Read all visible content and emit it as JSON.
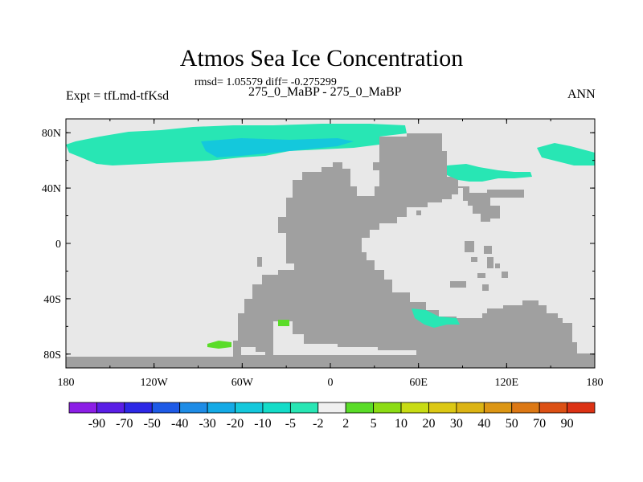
{
  "title": "Atmos Sea Ice Concentration",
  "stats": "rmsd= 1.05579 diff= -0.275299",
  "left_label": "Expt = tfLmd-tfKsd",
  "center_label": "275_0_MaBP - 275_0_MaBP",
  "right_label": "ANN",
  "lat_labels": [
    "80N",
    "40N",
    "0",
    "40S",
    "80S"
  ],
  "lon_labels": [
    "180",
    "120W",
    "60W",
    "0",
    "60E",
    "120E",
    "180"
  ],
  "colorbar": {
    "labels": [
      "-90",
      "-70",
      "-50",
      "-40",
      "-30",
      "-20",
      "-10",
      "-5",
      "-2",
      "2",
      "5",
      "10",
      "20",
      "30",
      "40",
      "50",
      "70",
      "90"
    ],
    "colors": [
      "#8c1ee6",
      "#5a1ee6",
      "#2d28e6",
      "#1e5ae6",
      "#1e8ce6",
      "#14aae6",
      "#14c8dc",
      "#14dcc8",
      "#28e6b4",
      "#f0f0f0",
      "#5adc28",
      "#8cdc14",
      "#c8dc14",
      "#dcc814",
      "#dcb414",
      "#dc9614",
      "#dc7814",
      "#dc5014",
      "#dc3214"
    ]
  },
  "map_colors": {
    "ocean": "#e8e8e8",
    "land": "#a0a0a0",
    "ice_decrease": "#28e6b4",
    "ice_decrease_strong": "#14c8dc",
    "ice_increase": "#5adc28"
  }
}
